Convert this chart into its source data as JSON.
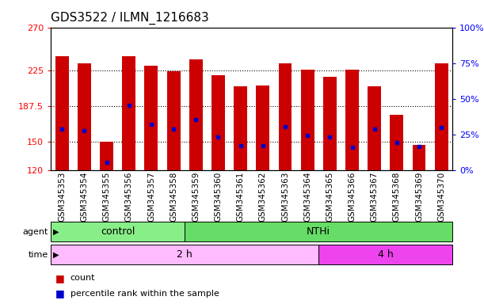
{
  "title": "GDS3522 / ILMN_1216683",
  "samples": [
    "GSM345353",
    "GSM345354",
    "GSM345355",
    "GSM345356",
    "GSM345357",
    "GSM345358",
    "GSM345359",
    "GSM345360",
    "GSM345361",
    "GSM345362",
    "GSM345363",
    "GSM345364",
    "GSM345365",
    "GSM345366",
    "GSM345367",
    "GSM345368",
    "GSM345369",
    "GSM345370"
  ],
  "bar_tops": [
    240,
    232,
    150,
    240,
    230,
    224,
    236,
    220,
    208,
    209,
    232,
    226,
    218,
    226,
    208,
    178,
    147,
    232
  ],
  "blue_dots": [
    163,
    162,
    128,
    188,
    168,
    163,
    173,
    155,
    146,
    146,
    166,
    157,
    155,
    144,
    163,
    149,
    145,
    165
  ],
  "y_min": 120,
  "y_max": 270,
  "y_ticks": [
    120,
    150,
    187.5,
    225,
    270
  ],
  "y_tick_labels": [
    "120",
    "150",
    "187.5",
    "225",
    "270"
  ],
  "right_y_ticks_pct": [
    0,
    25,
    50,
    75,
    100
  ],
  "right_y_labels": [
    "0%",
    "25%",
    "50%",
    "75%",
    "100%"
  ],
  "bar_color": "#cc0000",
  "dot_color": "#0000cc",
  "ctrl_count": 6,
  "nthi_count": 12,
  "time_2h_count": 12,
  "time_4h_count": 6,
  "agent_control_label": "control",
  "agent_nthi_label": "NTHi",
  "time_2h_label": "2 h",
  "time_4h_label": "4 h",
  "agent_label": "agent",
  "time_label": "time",
  "legend_count": "count",
  "legend_percentile": "percentile rank within the sample",
  "control_color": "#88ee88",
  "nthi_color": "#66dd66",
  "time_2h_color": "#ffbbff",
  "time_4h_color": "#ee44ee",
  "tick_label_fontsize": 7.5,
  "title_fontsize": 11,
  "bar_width": 0.6
}
